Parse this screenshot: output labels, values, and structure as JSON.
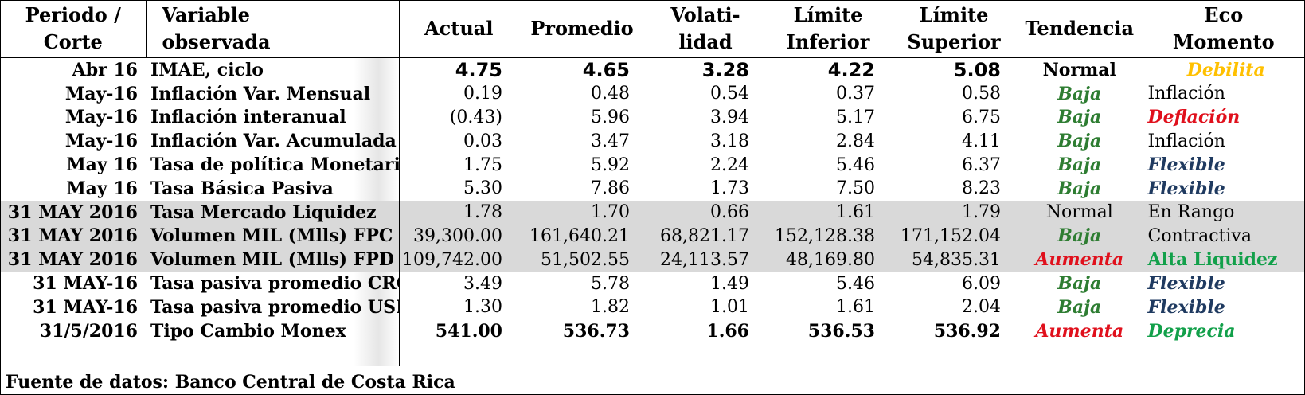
{
  "headers": {
    "periodo": [
      "Periodo /",
      "Corte"
    ],
    "variable": [
      "Variable",
      "observada"
    ],
    "actual": "Actual",
    "promedio": "Promedio",
    "volatilidad": [
      "Volati-",
      "lidad"
    ],
    "lim_inf": [
      "Límite",
      "Inferior"
    ],
    "lim_sup": [
      "Límite",
      "Superior"
    ],
    "tendencia": "Tendencia",
    "eco": [
      "Eco",
      "Momento"
    ]
  },
  "rows": [
    {
      "periodo": "Abr 16",
      "variable": "IMAE, ciclo",
      "actual": "4.75",
      "promedio": "4.65",
      "volatilidad": "3.28",
      "lim_inf": "4.22",
      "lim_sup": "5.08",
      "tendencia": "Normal",
      "eco": "Debilita"
    },
    {
      "periodo": "May-16",
      "variable": "Inflación Var. Mensual",
      "actual": "0.19",
      "promedio": "0.48",
      "volatilidad": "0.54",
      "lim_inf": "0.37",
      "lim_sup": "0.58",
      "tendencia": "Baja",
      "eco": "Inflación"
    },
    {
      "periodo": "May-16",
      "variable": "Inflación interanual",
      "actual": "(0.43)",
      "promedio": "5.96",
      "volatilidad": "3.94",
      "lim_inf": "5.17",
      "lim_sup": "6.75",
      "tendencia": "Baja",
      "eco": "Deflación"
    },
    {
      "periodo": "May-16",
      "variable": "Inflación Var. Acumulada",
      "actual": "0.03",
      "promedio": "3.47",
      "volatilidad": "3.18",
      "lim_inf": "2.84",
      "lim_sup": "4.11",
      "tendencia": "Baja",
      "eco": "Inflación"
    },
    {
      "periodo": "May 16",
      "variable": "Tasa de política Monetaria",
      "actual": "1.75",
      "promedio": "5.92",
      "volatilidad": "2.24",
      "lim_inf": "5.46",
      "lim_sup": "6.37",
      "tendencia": "Baja",
      "eco": "Flexible"
    },
    {
      "periodo": "May 16",
      "variable": "Tasa Básica Pasiva",
      "actual": "5.30",
      "promedio": "7.86",
      "volatilidad": "1.73",
      "lim_inf": "7.50",
      "lim_sup": "8.23",
      "tendencia": "Baja",
      "eco": "Flexible"
    },
    {
      "periodo": "31 MAY 2016",
      "variable": "Tasa Mercado Liquidez",
      "actual": "1.78",
      "promedio": "1.70",
      "volatilidad": "0.66",
      "lim_inf": "1.61",
      "lim_sup": "1.79",
      "tendencia": "Normal",
      "eco": "En Rango"
    },
    {
      "periodo": "31 MAY 2016",
      "variable": "Volumen MIL (Mlls) FPC",
      "actual": "39,300.00",
      "promedio": "161,640.21",
      "volatilidad": "68,821.17",
      "lim_inf": "152,128.38",
      "lim_sup": "171,152.04",
      "tendencia": "Baja",
      "eco": "Contractiva"
    },
    {
      "periodo": "31 MAY 2016",
      "variable": "Volumen MIL (Mlls) FPD",
      "actual": "109,742.00",
      "promedio": "51,502.55",
      "volatilidad": "24,113.57",
      "lim_inf": "48,169.80",
      "lim_sup": "54,835.31",
      "tendencia": "Aumenta",
      "eco": "Alta Liquidez"
    },
    {
      "periodo": "31 MAY-16",
      "variable": "Tasa pasiva promedio CRC",
      "actual": "3.49",
      "promedio": "5.78",
      "volatilidad": "1.49",
      "lim_inf": "5.46",
      "lim_sup": "6.09",
      "tendencia": "Baja",
      "eco": "Flexible"
    },
    {
      "periodo": "31 MAY-16",
      "variable": "Tasa pasiva promedio USD",
      "actual": "1.30",
      "promedio": "1.82",
      "volatilidad": "1.01",
      "lim_inf": "1.61",
      "lim_sup": "2.04",
      "tendencia": "Baja",
      "eco": "Flexible"
    },
    {
      "periodo": "31/5/2016",
      "variable": "Tipo Cambio Monex",
      "actual": "541.00",
      "promedio": "536.73",
      "volatilidad": "1.66",
      "lim_inf": "536.53",
      "lim_sup": "536.92",
      "tendencia": "Aumenta",
      "eco": "Deprecia"
    }
  ],
  "footer": "Fuente de datos: Banco Central de Costa Rica",
  "colors": {
    "green_dark": "#2e7d32",
    "red": "#e0101c",
    "yellow": "#ffc000",
    "navy": "#1f3a60",
    "green_bright": "#12a04a",
    "shade": "#d9d9d9"
  }
}
